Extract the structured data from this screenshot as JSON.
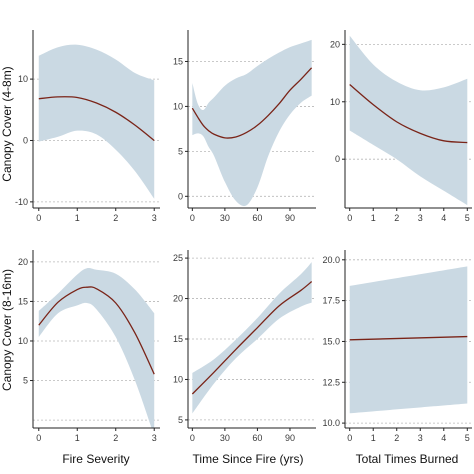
{
  "colors": {
    "band": "#cad9e3",
    "line": "#7a2418",
    "grid": "#b8b8b8",
    "axis": "#222222"
  },
  "row_labels": [
    "Canopy Cover (4-8m)",
    "Canopy Cover (8-16m)"
  ],
  "x_labels": [
    "Fire Severity",
    "Time Since Fire (yrs)",
    "Total Times Burned"
  ],
  "chart_data": [
    {
      "type": "line",
      "row": 0,
      "col": 0,
      "x": [
        0,
        0.5,
        1,
        1.5,
        2,
        2.5,
        3
      ],
      "y": [
        6.8,
        7.1,
        7.0,
        6.1,
        4.6,
        2.5,
        0.0
      ],
      "lower": [
        -0.2,
        0.6,
        1.6,
        1.0,
        -1.5,
        -5.0,
        -9.5
      ],
      "upper": [
        13.8,
        15.2,
        15.6,
        14.8,
        13.2,
        11.0,
        9.8
      ],
      "xlim": [
        -0.15,
        3.15
      ],
      "ylim": [
        -11,
        18
      ],
      "xticks": [
        0,
        1,
        2,
        3
      ],
      "yticks": [
        -10,
        0,
        10
      ],
      "grid": [
        -10,
        0,
        10
      ],
      "xlabel": "",
      "ylabel": "Canopy Cover (4-8m)"
    },
    {
      "type": "line",
      "row": 0,
      "col": 1,
      "x": [
        0,
        5,
        10,
        15,
        20,
        30,
        40,
        50,
        60,
        70,
        80,
        90,
        100,
        110
      ],
      "y": [
        9.8,
        8.8,
        7.9,
        7.3,
        6.9,
        6.5,
        6.6,
        7.1,
        7.9,
        9.0,
        10.3,
        11.8,
        13.0,
        14.3
      ],
      "lower": [
        6.8,
        7.0,
        6.7,
        5.5,
        4.5,
        1.6,
        -0.5,
        -1.0,
        1.0,
        4.5,
        7.2,
        9.1,
        10.4,
        11.2
      ],
      "upper": [
        12.6,
        10.3,
        9.6,
        10.4,
        11.0,
        12.3,
        13.1,
        13.6,
        14.5,
        15.3,
        16.0,
        16.6,
        17.0,
        17.4
      ],
      "xlim": [
        -4,
        114
      ],
      "ylim": [
        -1.3,
        18.5
      ],
      "xticks": [
        0,
        30,
        60,
        90
      ],
      "yticks": [
        0,
        5,
        10,
        15
      ],
      "grid": [
        0,
        5,
        10,
        15
      ],
      "xlabel": "",
      "ylabel": ""
    },
    {
      "type": "line",
      "row": 0,
      "col": 2,
      "x": [
        0,
        1,
        2,
        3,
        4,
        5
      ],
      "y": [
        13.0,
        9.5,
        6.5,
        4.5,
        3.2,
        2.9
      ],
      "lower": [
        5.0,
        2.5,
        0.0,
        -3.0,
        -5.5,
        -8.0
      ],
      "upper": [
        21.5,
        16.5,
        13.5,
        12.0,
        12.5,
        14.0
      ],
      "xlim": [
        -0.2,
        5.2
      ],
      "ylim": [
        -8.5,
        22.5
      ],
      "xticks": [
        0,
        1,
        2,
        3,
        4,
        5
      ],
      "yticks": [
        0,
        10,
        20
      ],
      "grid": [
        0,
        10,
        20
      ],
      "xlabel": "",
      "ylabel": ""
    },
    {
      "type": "line",
      "row": 1,
      "col": 0,
      "x": [
        0,
        0.5,
        1,
        1.25,
        1.5,
        2,
        2.5,
        3
      ],
      "y": [
        12.0,
        14.9,
        16.5,
        16.8,
        16.6,
        14.8,
        11.0,
        5.8
      ],
      "lower": [
        10.5,
        13.5,
        14.5,
        14.8,
        14.0,
        10.5,
        5.0,
        -2.0
      ],
      "upper": [
        13.8,
        16.0,
        18.4,
        19.2,
        19.0,
        18.5,
        16.5,
        13.5
      ],
      "xlim": [
        -0.15,
        3.15
      ],
      "ylim": [
        -1,
        21.5
      ],
      "xticks": [
        0,
        1,
        2,
        3
      ],
      "yticks": [
        5,
        10,
        15,
        20
      ],
      "grid": [
        0,
        5,
        10,
        15,
        20
      ],
      "xlabel": "Fire Severity",
      "ylabel": "Canopy Cover (8-16m)"
    },
    {
      "type": "line",
      "row": 1,
      "col": 1,
      "x": [
        0,
        20,
        40,
        60,
        80,
        100,
        110
      ],
      "y": [
        8.2,
        10.9,
        13.7,
        16.4,
        19.1,
        21.0,
        22.1
      ],
      "lower": [
        5.8,
        9.5,
        12.6,
        15.0,
        17.5,
        19.0,
        19.5
      ],
      "upper": [
        10.8,
        12.5,
        14.9,
        17.6,
        20.6,
        23.0,
        24.5
      ],
      "xlim": [
        -4,
        114
      ],
      "ylim": [
        4,
        26
      ],
      "xticks": [
        0,
        30,
        60,
        90
      ],
      "yticks": [
        5,
        10,
        15,
        20,
        25
      ],
      "grid": [
        5,
        10,
        15,
        20,
        25
      ],
      "xlabel": "Time Since Fire (yrs)",
      "ylabel": ""
    },
    {
      "type": "line",
      "row": 1,
      "col": 2,
      "x": [
        0,
        5
      ],
      "y": [
        15.1,
        15.3
      ],
      "lower": [
        10.6,
        11.2
      ],
      "upper": [
        18.4,
        19.6
      ],
      "xlim": [
        -0.2,
        5.2
      ],
      "ylim": [
        9.7,
        20.6
      ],
      "xticks": [
        0,
        1,
        2,
        3,
        4,
        5
      ],
      "yticks": [
        10.0,
        12.5,
        15.0,
        17.5,
        20.0
      ],
      "ytick_labels": [
        "10.0",
        "12.5",
        "15.0",
        "17.5",
        "20.0"
      ],
      "grid": [
        10.0,
        12.5,
        15.0,
        17.5,
        20.0
      ],
      "xlabel": "Total Times Burned",
      "ylabel": ""
    }
  ]
}
